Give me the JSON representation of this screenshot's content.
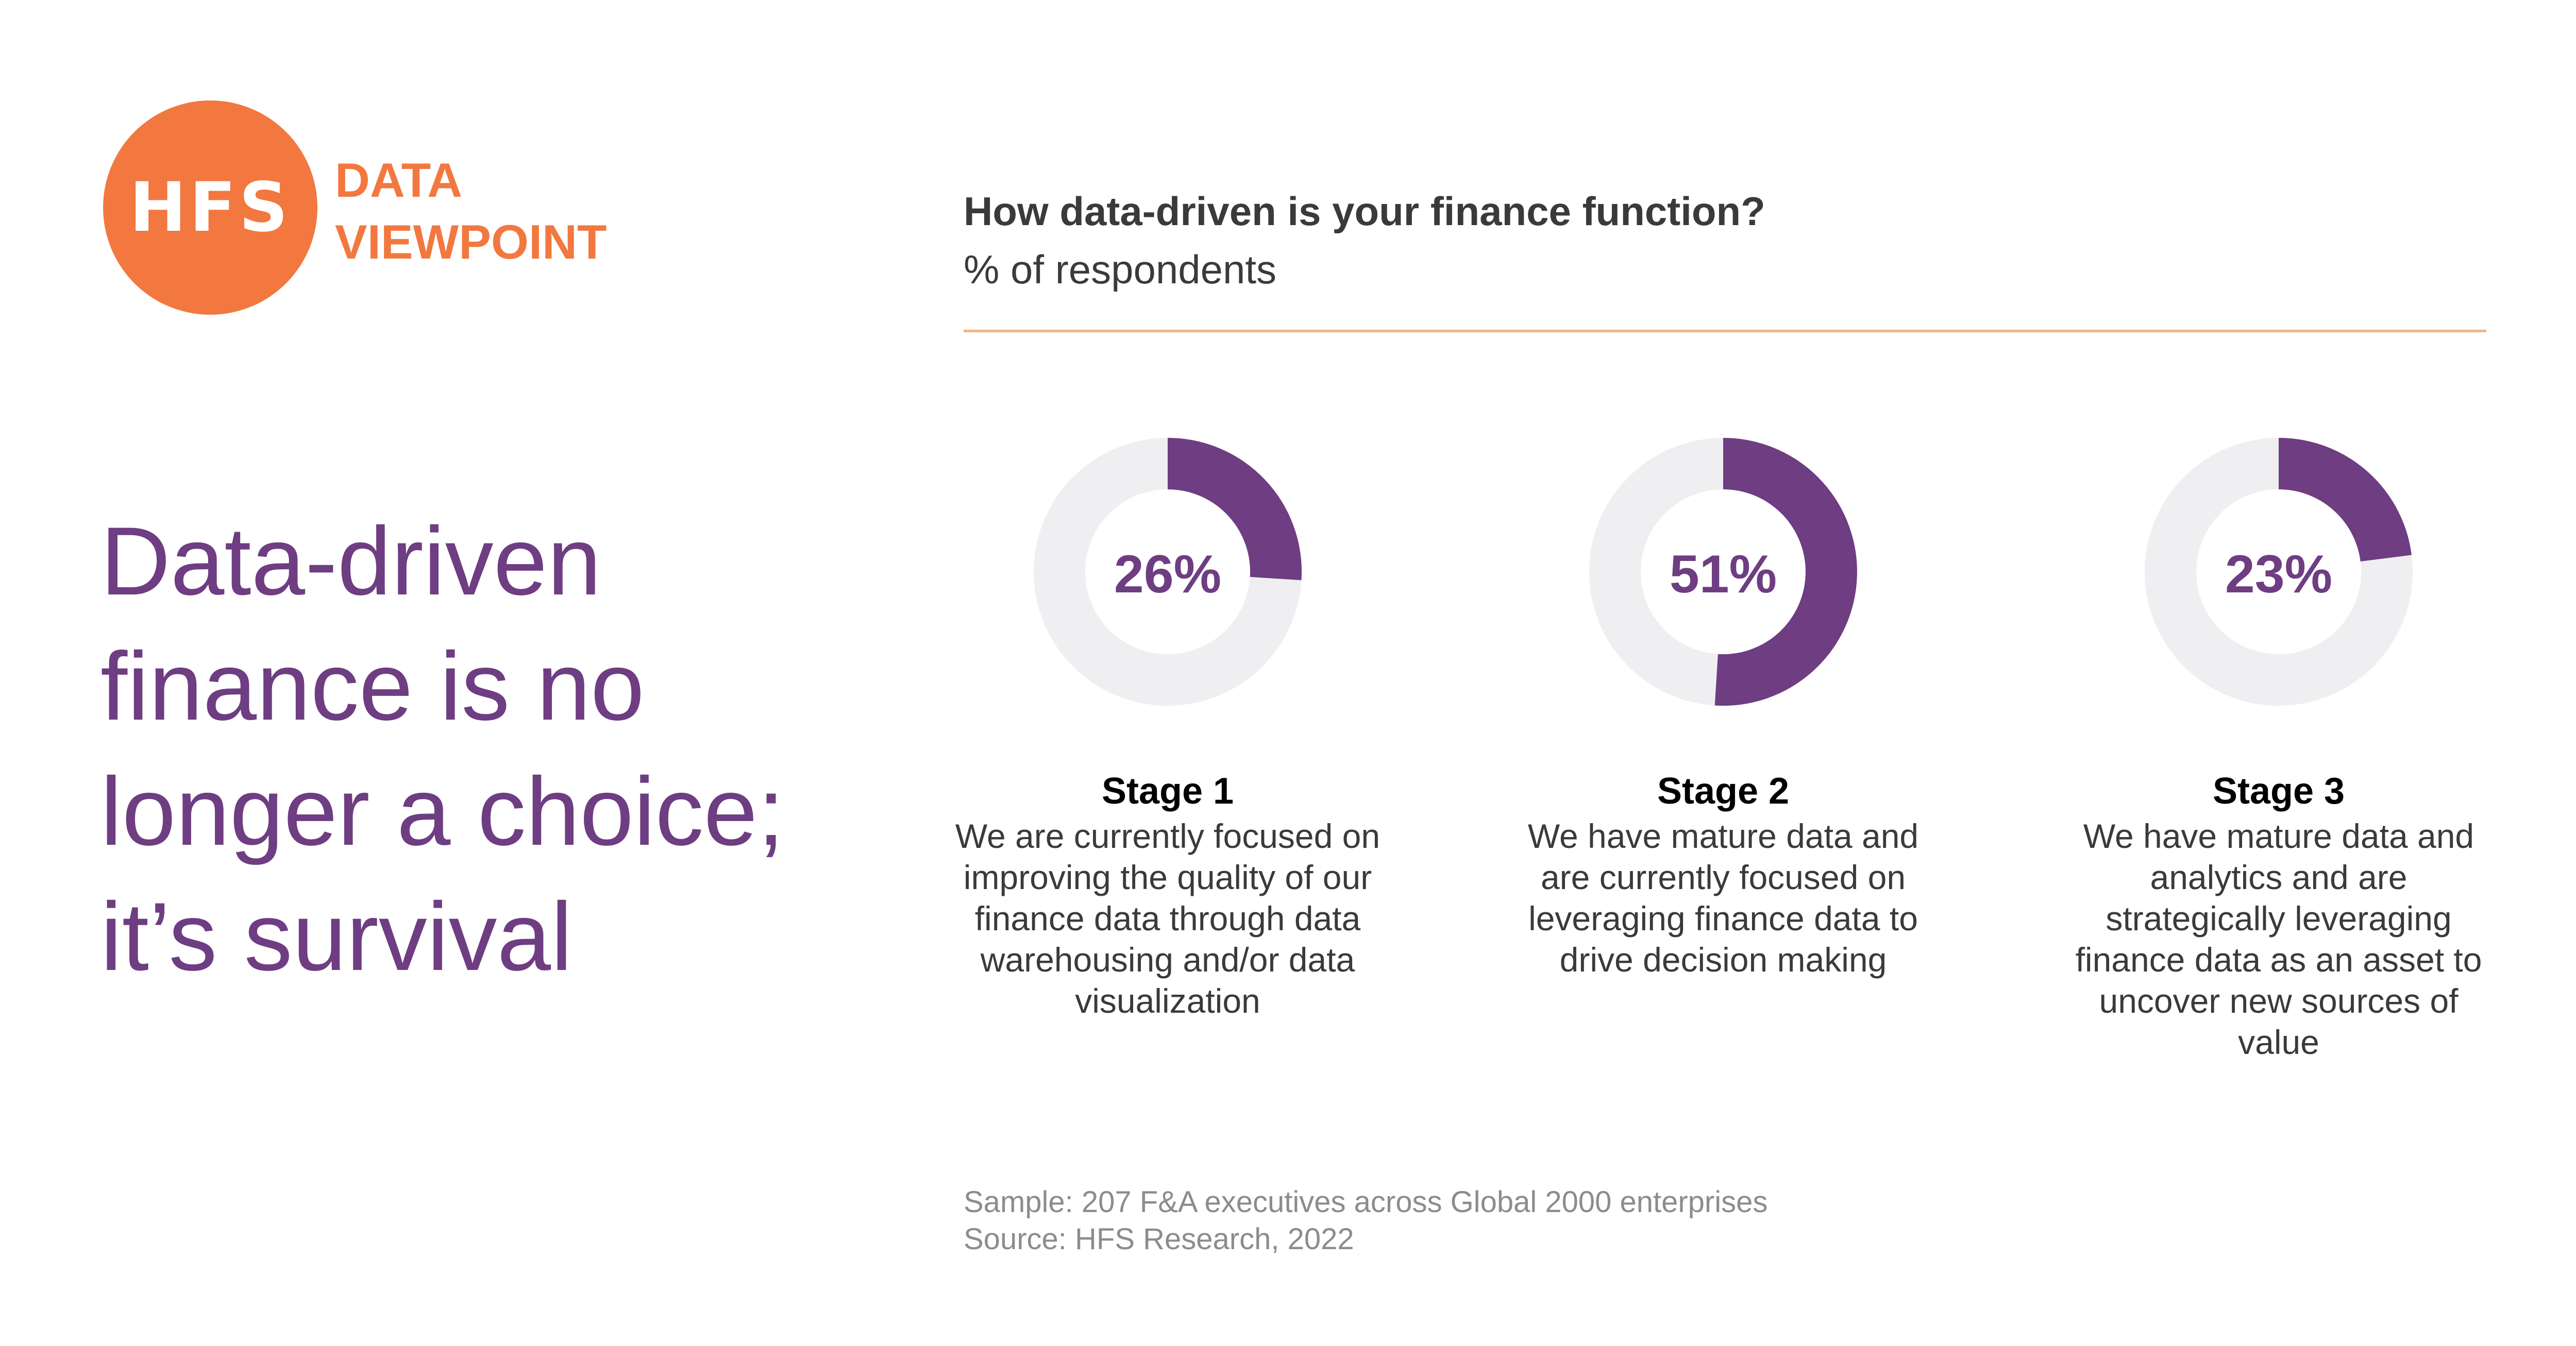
{
  "logo": {
    "initials": "HFS",
    "line1": "DATA",
    "line2": "VIEWPOINT"
  },
  "headline": "Data-driven finance is no longer a choice; it’s survival",
  "question": {
    "title": "How data-driven is your finance function?",
    "subtitle": "% of respondents"
  },
  "colors": {
    "orange": "#F27840",
    "purple": "#6E3D82",
    "track": "#EFEFF1",
    "divider": "#F4B47F"
  },
  "chart_data": {
    "type": "pie",
    "title": "How data-driven is your finance function?",
    "subtitle": "% of respondents",
    "categories": [
      "Stage 1",
      "Stage 2",
      "Stage 3"
    ],
    "values": [
      26,
      51,
      23
    ],
    "labels": [
      "26%",
      "51%",
      "23%"
    ],
    "descriptions": [
      "We are currently focused on improving the quality of our finance data through data warehousing and/or data visualization",
      "We have mature data and are currently focused on leveraging finance data to drive decision making",
      "We have mature data and analytics and are strategically leveraging finance data as an asset to uncover new sources of value"
    ]
  },
  "footnotes": {
    "sample": "Sample: 207 F&A executives across Global 2000 enterprises",
    "source": "Source: HFS Research, 2022"
  }
}
